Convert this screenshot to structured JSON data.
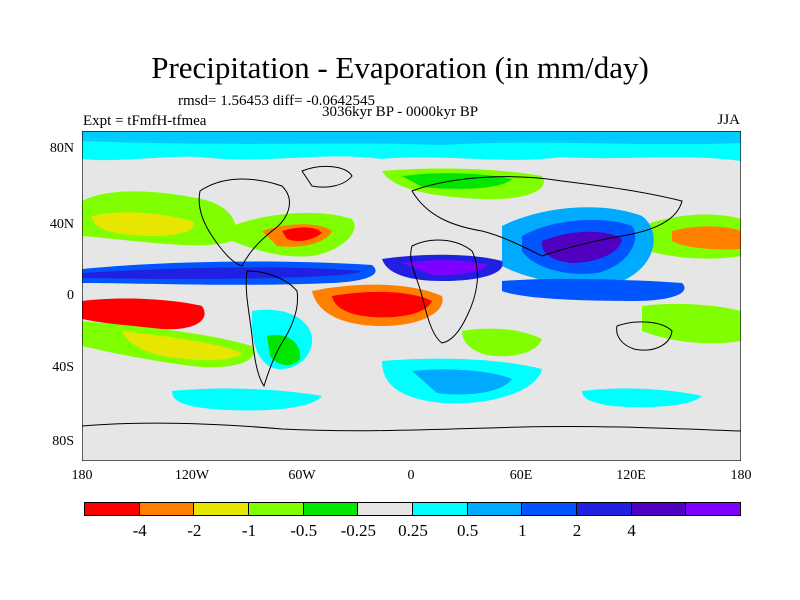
{
  "title": "Precipitation - Evaporation (in mm/day)",
  "stats": "rmsd= 1.56453 diff= -0.0642545",
  "subtitle": "3036kyr BP - 0000kyr BP",
  "expt": "Expt = tFmfH-tfmea",
  "season": "JJA",
  "lat_labels": [
    "80N",
    "40N",
    "0",
    "40S",
    "80S"
  ],
  "lon_labels": [
    "180",
    "120W",
    "60W",
    "0",
    "60E",
    "120E",
    "180"
  ],
  "colorbar": {
    "colors": [
      "#ff0000",
      "#ff8000",
      "#e6e600",
      "#80ff00",
      "#00e600",
      "#e6e6e6",
      "#00ffff",
      "#00aaff",
      "#0055ff",
      "#2020e0",
      "#5000c0",
      "#8000ff"
    ],
    "labels": [
      "-4",
      "-2",
      "-1",
      "-0.5",
      "-0.25",
      "0.25",
      "0.5",
      "1",
      "2",
      "4"
    ]
  }
}
